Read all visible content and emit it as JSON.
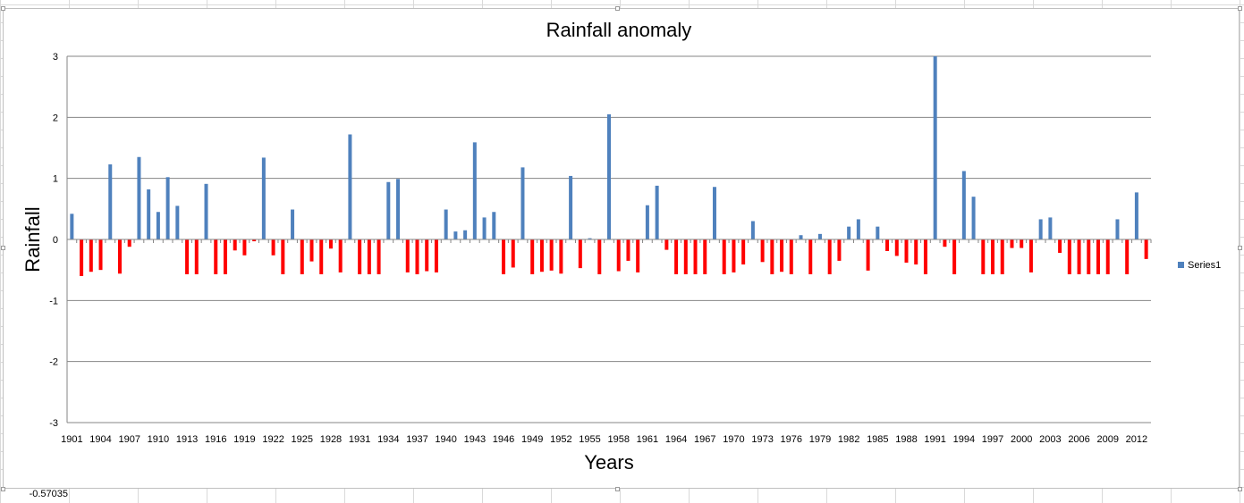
{
  "spreadsheet": {
    "visible_cell_value": "-0.57035"
  },
  "chart_data": {
    "type": "bar",
    "title": "Rainfall anomaly",
    "xlabel": "Years",
    "ylabel": "Rainfall",
    "ylim": [
      -3,
      3
    ],
    "yticks": [
      3,
      2,
      1,
      0,
      -1,
      -2,
      -3
    ],
    "grid": true,
    "legend": {
      "placement": "right",
      "entries": [
        "Series1"
      ]
    },
    "colors": {
      "positive": "#4f81bd",
      "negative": "#ff0000",
      "grid": "#868686",
      "axis": "#868686"
    },
    "tick_labels": [
      "1901",
      "1904",
      "1907",
      "1910",
      "1913",
      "1916",
      "1919",
      "1922",
      "1925",
      "1928",
      "1931",
      "1934",
      "1937",
      "1940",
      "1943",
      "1946",
      "1949",
      "1952",
      "1955",
      "1958",
      "1961",
      "1964",
      "1967",
      "1970",
      "1973",
      "1976",
      "1979",
      "1982",
      "1985",
      "1988",
      "1991",
      "1994",
      "1997",
      "2000",
      "2003",
      "2006",
      "2009",
      "2012"
    ],
    "categories": [
      "1901",
      "1902",
      "1903",
      "1904",
      "1905",
      "1906",
      "1907",
      "1908",
      "1909",
      "1910",
      "1911",
      "1912",
      "1913",
      "1914",
      "1915",
      "1916",
      "1917",
      "1918",
      "1919",
      "1920",
      "1921",
      "1922",
      "1923",
      "1924",
      "1925",
      "1926",
      "1927",
      "1928",
      "1929",
      "1930",
      "1931",
      "1932",
      "1933",
      "1934",
      "1935",
      "1936",
      "1937",
      "1938",
      "1939",
      "1940",
      "1941",
      "1942",
      "1943",
      "1944",
      "1945",
      "1946",
      "1947",
      "1948",
      "1949",
      "1950",
      "1951",
      "1952",
      "1953",
      "1954",
      "1955",
      "1956",
      "1957",
      "1958",
      "1959",
      "1960",
      "1961",
      "1962",
      "1963",
      "1964",
      "1965",
      "1966",
      "1967",
      "1968",
      "1969",
      "1970",
      "1971",
      "1972",
      "1973",
      "1974",
      "1975",
      "1976",
      "1977",
      "1978",
      "1979",
      "1980",
      "1981",
      "1982",
      "1983",
      "1984",
      "1985",
      "1986",
      "1987",
      "1988",
      "1989",
      "1990",
      "1991",
      "1992",
      "1993",
      "1994",
      "1995",
      "1996",
      "1997",
      "1998",
      "1999",
      "2000",
      "2001",
      "2002",
      "2003",
      "2004",
      "2005",
      "2006",
      "2007",
      "2008",
      "2009",
      "2010",
      "2011",
      "2012",
      "2013"
    ],
    "series": [
      {
        "name": "Series1",
        "values": [
          0.42,
          -0.6,
          -0.53,
          -0.5,
          1.23,
          -0.56,
          -0.12,
          1.35,
          0.82,
          0.45,
          1.02,
          0.55,
          -0.57,
          -0.57,
          0.91,
          -0.57,
          -0.57,
          -0.18,
          -0.26,
          -0.03,
          1.34,
          -0.26,
          -0.57,
          0.49,
          -0.57,
          -0.36,
          -0.57,
          -0.15,
          -0.54,
          1.72,
          -0.57,
          -0.57,
          -0.57,
          0.94,
          0.99,
          -0.54,
          -0.57,
          -0.52,
          -0.54,
          0.49,
          0.13,
          0.15,
          1.59,
          0.36,
          0.45,
          -0.57,
          -0.46,
          1.18,
          -0.57,
          -0.53,
          -0.51,
          -0.56,
          1.04,
          -0.47,
          0.02,
          -0.57,
          2.05,
          -0.52,
          -0.35,
          -0.54,
          0.56,
          0.88,
          -0.17,
          -0.57,
          -0.57,
          -0.57,
          -0.57,
          0.86,
          -0.57,
          -0.54,
          -0.41,
          0.3,
          -0.37,
          -0.57,
          -0.53,
          -0.57,
          0.07,
          -0.57,
          0.09,
          -0.57,
          -0.35,
          0.21,
          0.33,
          -0.51,
          0.21,
          -0.19,
          -0.27,
          -0.38,
          -0.41,
          -0.57,
          3.01,
          -0.12,
          -0.57,
          1.12,
          0.7,
          -0.57,
          -0.57,
          -0.57,
          -0.14,
          -0.14,
          -0.54,
          0.33,
          0.36,
          -0.22,
          -0.57,
          -0.57,
          -0.57,
          -0.57,
          -0.57,
          0.33,
          -0.57,
          0.77,
          -0.32
        ]
      }
    ]
  }
}
